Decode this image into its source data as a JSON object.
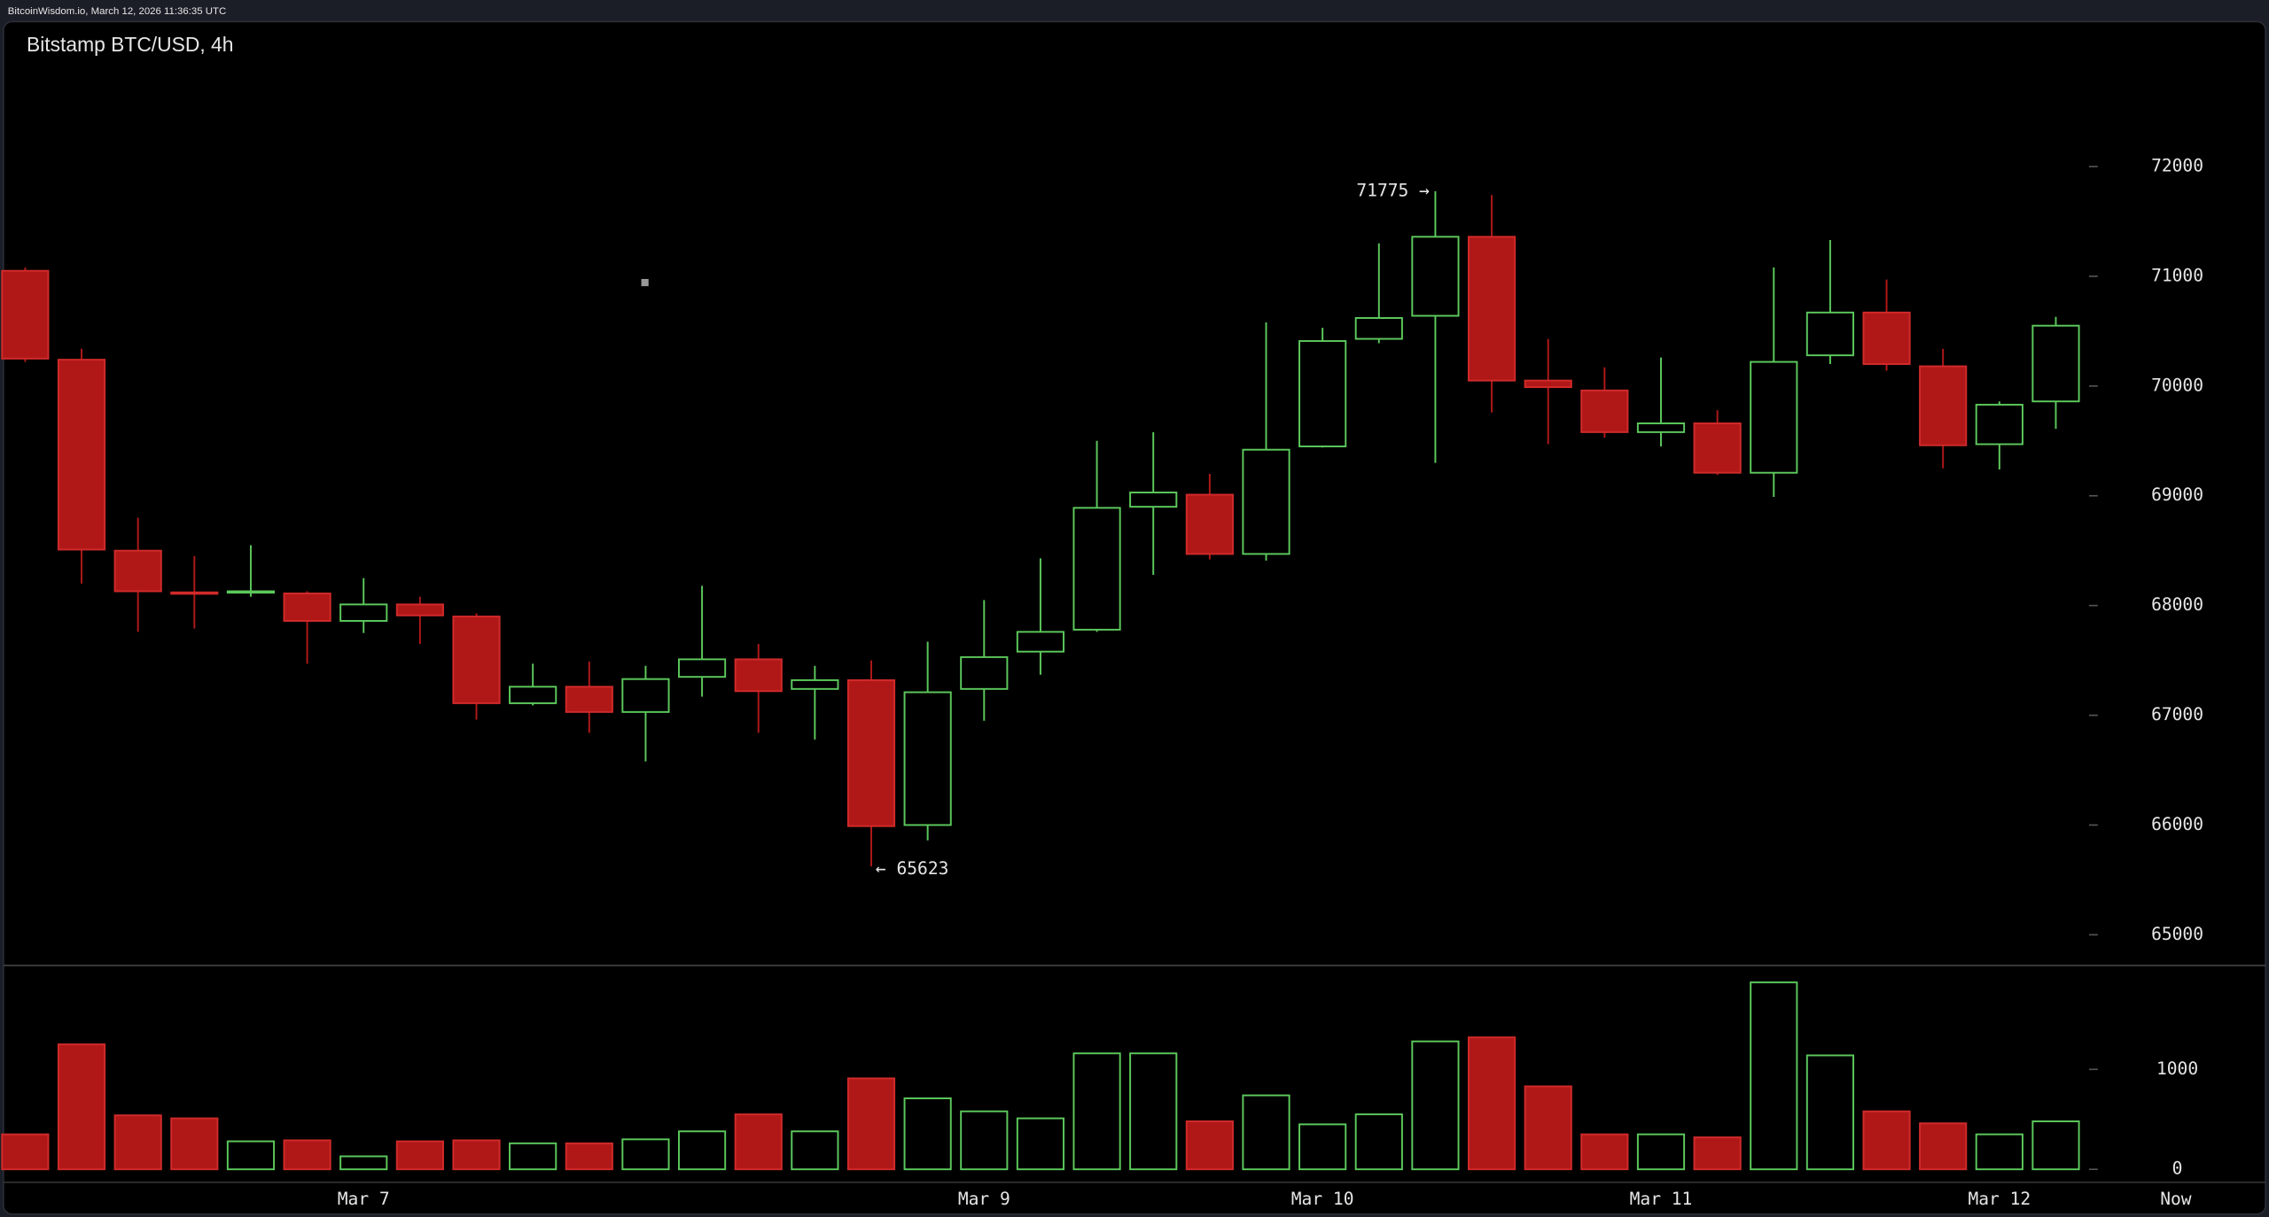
{
  "header": {
    "text": "BitcoinWisdom.io, March 12, 2026 11:36:35 UTC"
  },
  "chart_data": {
    "type": "candlestick",
    "title": "Bitstamp BTC/USD, 4h",
    "categories": [
      null,
      null,
      null,
      null,
      null,
      null,
      "Mar 7",
      null,
      null,
      null,
      null,
      null,
      null,
      null,
      null,
      null,
      null,
      "Mar 9",
      null,
      null,
      null,
      null,
      null,
      "Mar 10",
      null,
      null,
      null,
      null,
      null,
      "Mar 11",
      null,
      null,
      null,
      null,
      null,
      "Mar 12",
      null
    ],
    "now_label": "Now",
    "open": [
      71050,
      70240,
      68500,
      68120,
      68120,
      68110,
      67860,
      68010,
      67900,
      67110,
      67260,
      67030,
      67350,
      67510,
      67240,
      67320,
      66000,
      67240,
      67580,
      67780,
      68900,
      69010,
      68470,
      69450,
      70430,
      70640,
      71360,
      70050,
      69960,
      69580,
      69660,
      69210,
      70280,
      70670,
      70180,
      69470,
      69860
    ],
    "high": [
      71080,
      70340,
      68800,
      68450,
      68550,
      68130,
      68250,
      68080,
      67930,
      67470,
      67490,
      67450,
      68180,
      67650,
      67450,
      67500,
      67670,
      68050,
      68430,
      69500,
      69580,
      69200,
      70580,
      70530,
      71300,
      71775,
      71740,
      70430,
      70170,
      70260,
      69780,
      71080,
      71330,
      70970,
      70340,
      69860,
      70630
    ],
    "low": [
      70220,
      68200,
      67760,
      67790,
      68080,
      67470,
      67750,
      67650,
      66960,
      67090,
      66840,
      66580,
      67170,
      66840,
      66780,
      65623,
      65860,
      66950,
      67370,
      67760,
      68280,
      68420,
      68410,
      69440,
      70390,
      69300,
      69760,
      69470,
      69530,
      69450,
      69190,
      68990,
      70200,
      70140,
      69250,
      69240,
      69610
    ],
    "close": [
      70250,
      68510,
      68130,
      68110,
      68130,
      67860,
      68010,
      67910,
      67110,
      67260,
      67030,
      67330,
      67510,
      67220,
      67320,
      65990,
      67210,
      67530,
      67760,
      68890,
      69030,
      68470,
      69420,
      70410,
      70620,
      71360,
      70050,
      69990,
      69580,
      69660,
      69210,
      70220,
      70670,
      70200,
      69460,
      69830,
      70550
    ],
    "volume": [
      350,
      1250,
      540,
      510,
      280,
      290,
      130,
      280,
      290,
      260,
      260,
      300,
      380,
      550,
      380,
      910,
      710,
      580,
      510,
      1160,
      1160,
      480,
      740,
      450,
      550,
      1280,
      1320,
      830,
      350,
      350,
      320,
      1870,
      1140,
      580,
      460,
      350,
      480
    ],
    "up_color": "#5cc85c",
    "down_color": "#b01818",
    "ylim": [
      64720,
      73320
    ],
    "yticks": [
      65000,
      66000,
      67000,
      68000,
      69000,
      70000,
      71000,
      72000
    ],
    "volume_ylim": [
      -130,
      2010
    ],
    "volume_yticks": [
      0,
      1000
    ],
    "annotations": [
      {
        "text": "71775 →"
      },
      {
        "text": "← 65623"
      }
    ]
  }
}
